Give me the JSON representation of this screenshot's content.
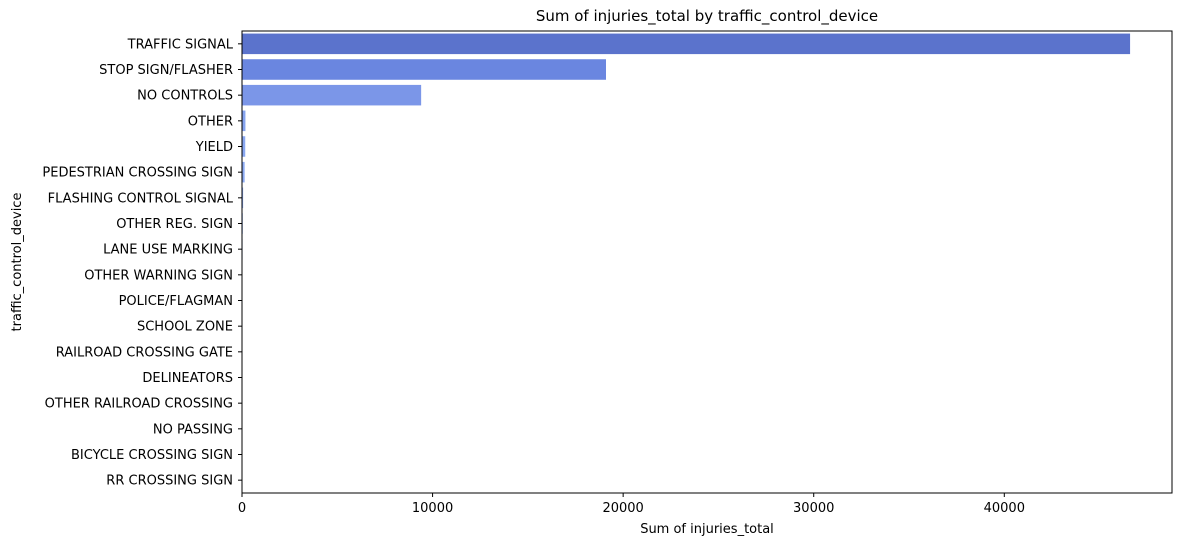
{
  "chart_data": {
    "type": "bar",
    "orientation": "horizontal",
    "title": "Sum of injuries_total by traffic_control_device",
    "xlabel": "Sum of injuries_total",
    "ylabel": "traffic_control_device",
    "xlim": [
      0,
      48800
    ],
    "xticks": [
      0,
      10000,
      20000,
      30000,
      40000
    ],
    "grid": false,
    "legend": "none",
    "categories": [
      "TRAFFIC SIGNAL",
      "STOP SIGN/FLASHER",
      "NO CONTROLS",
      "OTHER",
      "YIELD",
      "PEDESTRIAN CROSSING SIGN",
      "FLASHING CONTROL SIGNAL",
      "OTHER REG. SIGN",
      "LANE USE MARKING",
      "OTHER WARNING SIGN",
      "POLICE/FLAGMAN",
      "SCHOOL ZONE",
      "RAILROAD CROSSING GATE",
      "DELINEATORS",
      "OTHER RAILROAD CROSSING",
      "NO PASSING",
      "BICYCLE CROSSING SIGN",
      "RR CROSSING SIGN"
    ],
    "values": [
      46600,
      19100,
      9400,
      180,
      170,
      140,
      60,
      40,
      30,
      25,
      20,
      15,
      12,
      10,
      8,
      6,
      5,
      3
    ],
    "colors": [
      "#5b73cc",
      "#6a86e0",
      "#7b96e8",
      "#86a4f0",
      "#8aa8f2",
      "#8fadf4",
      "#93b1f5",
      "#96b4f6",
      "#99b7f7",
      "#9cbaf7",
      "#9fbcf8",
      "#a2bff8",
      "#a5c1f9",
      "#a8c3f9",
      "#abc6fa",
      "#aec8fa",
      "#b1cafb",
      "#b4ccfb"
    ]
  }
}
